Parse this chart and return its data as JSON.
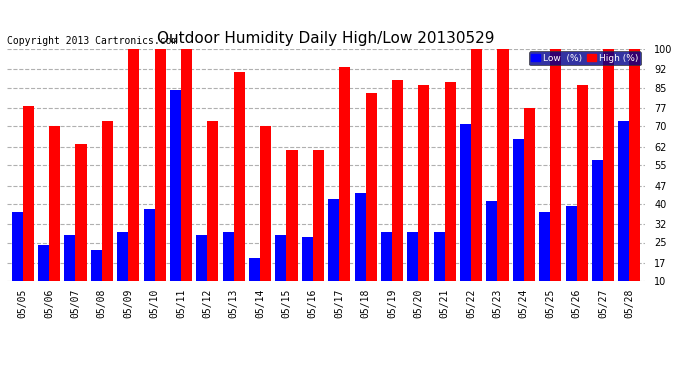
{
  "title": "Outdoor Humidity Daily High/Low 20130529",
  "copyright": "Copyright 2013 Cartronics.com",
  "dates": [
    "05/05",
    "05/06",
    "05/07",
    "05/08",
    "05/09",
    "05/10",
    "05/11",
    "05/12",
    "05/13",
    "05/14",
    "05/15",
    "05/16",
    "05/17",
    "05/18",
    "05/19",
    "05/20",
    "05/21",
    "05/22",
    "05/23",
    "05/24",
    "05/25",
    "05/26",
    "05/27",
    "05/28"
  ],
  "high": [
    78,
    70,
    63,
    72,
    100,
    100,
    100,
    72,
    91,
    70,
    61,
    61,
    93,
    83,
    88,
    86,
    87,
    100,
    100,
    77,
    100,
    86,
    100,
    100
  ],
  "low": [
    37,
    24,
    28,
    22,
    29,
    38,
    84,
    28,
    29,
    19,
    28,
    27,
    42,
    44,
    29,
    29,
    29,
    71,
    41,
    65,
    37,
    39,
    57,
    72
  ],
  "ylim": [
    10,
    100
  ],
  "yticks": [
    10,
    17,
    25,
    32,
    40,
    47,
    55,
    62,
    70,
    77,
    85,
    92,
    100
  ],
  "bar_width": 0.42,
  "low_color": "#0000ff",
  "high_color": "#ff0000",
  "bg_color": "#ffffff",
  "grid_color": "#b0b0b0",
  "title_fontsize": 11,
  "copyright_fontsize": 7,
  "tick_fontsize": 7
}
